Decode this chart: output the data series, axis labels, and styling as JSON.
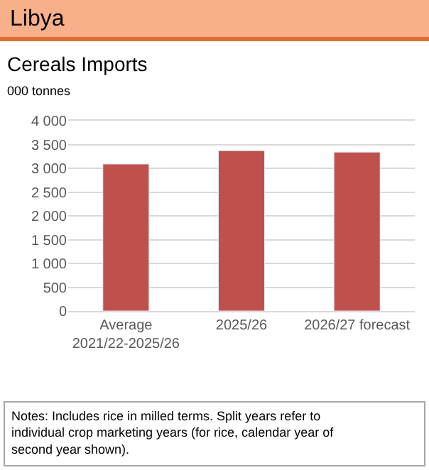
{
  "chart_data": {
    "type": "bar",
    "title": "Libya",
    "subtitle": "Cereals Imports",
    "ylabel": "000 tonnes",
    "categories": [
      "Average 2021/22-2025/26",
      "2025/26",
      "2026/27 forecast"
    ],
    "values": [
      3090,
      3370,
      3340
    ],
    "color": "#c0504d",
    "ylim": [
      0,
      4000
    ],
    "yticks": [
      {
        "value": 0,
        "label": "0"
      },
      {
        "value": 500,
        "label": "500"
      },
      {
        "value": 1000,
        "label": "1 000"
      },
      {
        "value": 1500,
        "label": "1 500"
      },
      {
        "value": 2000,
        "label": "2 000"
      },
      {
        "value": 2500,
        "label": "2 500"
      },
      {
        "value": 3000,
        "label": "3 000"
      },
      {
        "value": 3500,
        "label": "3 500"
      },
      {
        "value": 4000,
        "label": "4 000"
      }
    ],
    "grid": "y",
    "annotations": [
      "Notes: Includes rice in milled terms. Split years refer to individual crop marketing years (for rice, calendar year of second year shown)."
    ]
  }
}
